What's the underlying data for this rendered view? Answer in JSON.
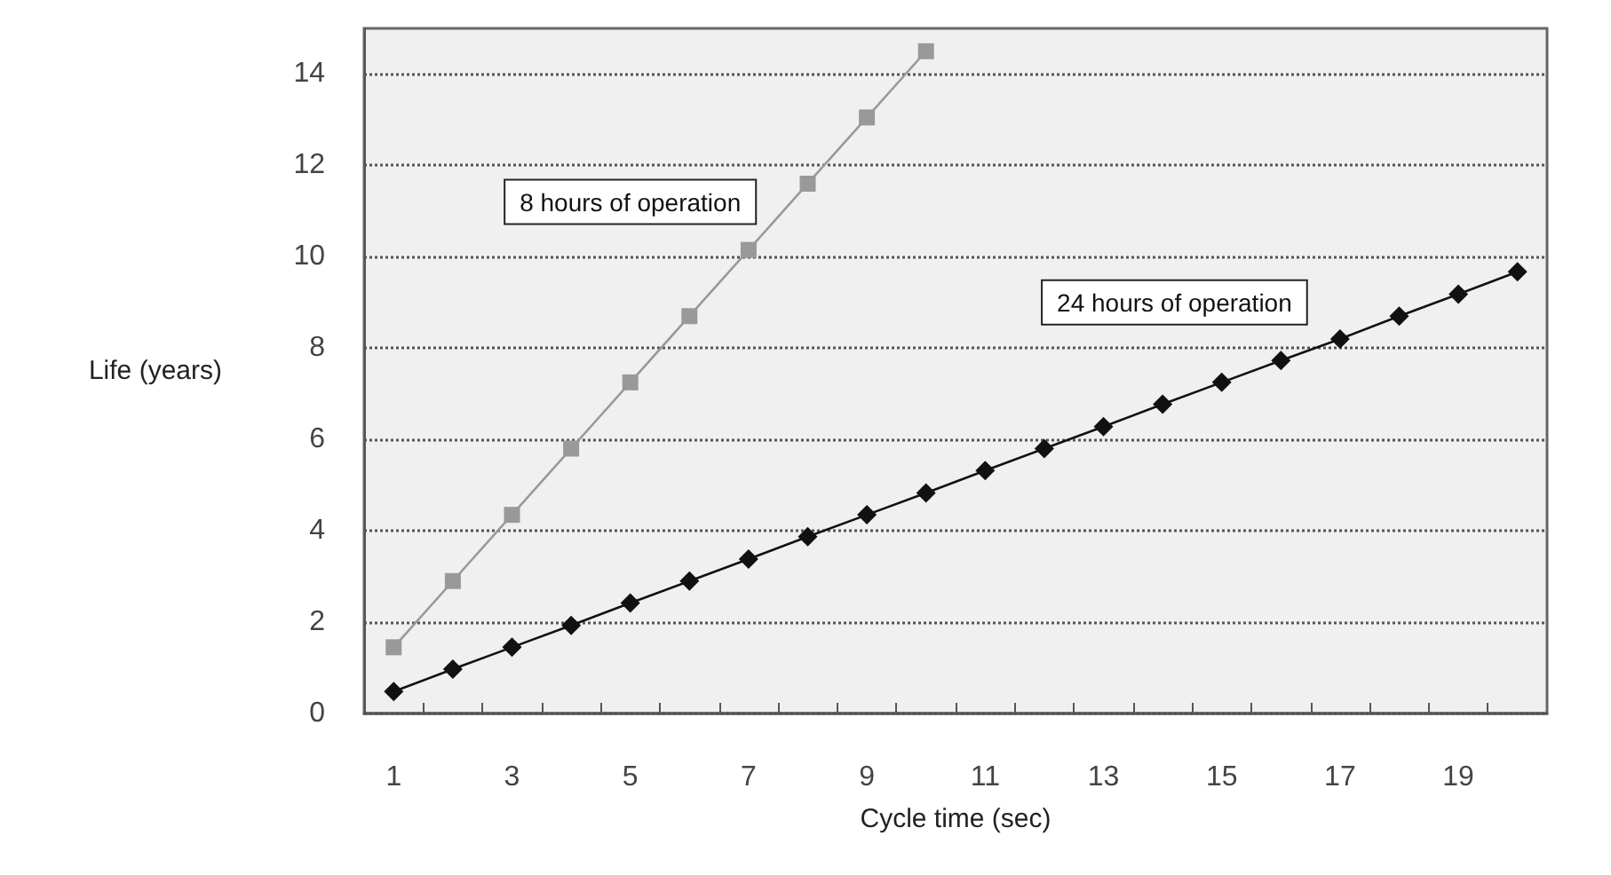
{
  "chart_data": {
    "type": "line",
    "xlabel": "Cycle time (sec)",
    "ylabel": "Life (years)",
    "x": [
      1,
      2,
      3,
      4,
      5,
      6,
      7,
      8,
      9,
      10,
      11,
      12,
      13,
      14,
      15,
      16,
      17,
      18,
      19,
      20
    ],
    "xlim": [
      0.5,
      20.5
    ],
    "xticks": [
      1,
      3,
      5,
      7,
      9,
      11,
      13,
      15,
      17,
      19,
      {
        "value": 1.5,
        "label": null
      },
      {
        "value": 2.5,
        "label": null
      },
      {
        "value": 3.5,
        "label": null
      },
      {
        "value": 4.5,
        "label": null
      },
      {
        "value": 5.5,
        "label": null
      },
      {
        "value": 6.5,
        "label": null
      },
      {
        "value": 7.5,
        "label": null
      },
      {
        "value": 8.5,
        "label": null
      },
      {
        "value": 9.5,
        "label": null
      },
      {
        "value": 10.5,
        "label": null
      },
      {
        "value": 11.5,
        "label": null
      },
      {
        "value": 12.5,
        "label": null
      },
      {
        "value": 13.5,
        "label": null
      },
      {
        "value": 14.5,
        "label": null
      },
      {
        "value": 15.5,
        "label": null
      },
      {
        "value": 16.5,
        "label": null
      },
      {
        "value": 17.5,
        "label": null
      },
      {
        "value": 18.5,
        "label": null
      },
      {
        "value": 19.5,
        "label": null
      }
    ],
    "series": [
      {
        "name": "8 hours of operation",
        "color": "#999999",
        "marker": "square",
        "values": [
          1.45,
          2.9,
          4.35,
          5.8,
          7.25,
          8.7,
          10.15,
          11.6,
          13.05,
          14.5,
          null,
          null,
          null,
          null,
          null,
          null,
          null,
          null,
          null,
          null
        ]
      },
      {
        "name": "24 hours of operation",
        "color": "#111111",
        "marker": "diamond",
        "values": [
          0.48,
          0.97,
          1.45,
          1.93,
          2.42,
          2.9,
          3.38,
          3.87,
          4.35,
          4.83,
          5.32,
          5.8,
          6.28,
          6.77,
          7.25,
          7.73,
          8.2,
          8.7,
          9.18,
          9.67
        ]
      }
    ],
    "ylim": [
      0,
      15
    ],
    "yticks": [
      0,
      2,
      4,
      6,
      8,
      10,
      12,
      14
    ],
    "grid": "y",
    "line_style": "solid"
  }
}
